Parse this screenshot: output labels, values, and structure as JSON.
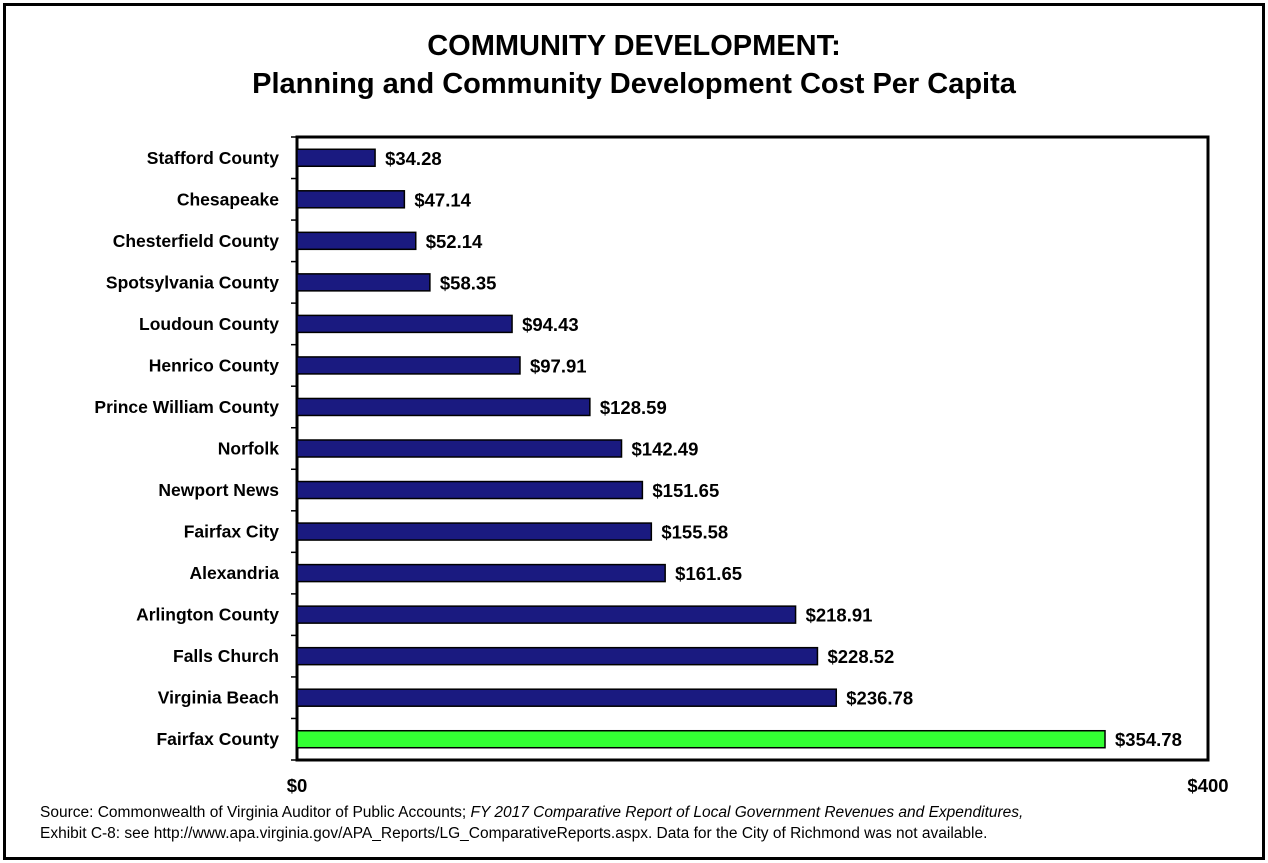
{
  "chart_data": {
    "type": "bar",
    "orientation": "horizontal",
    "title": "COMMUNITY DEVELOPMENT:",
    "subtitle": "Planning and Community Development Cost Per Capita",
    "categories": [
      "Stafford County",
      "Chesapeake",
      "Chesterfield County",
      "Spotsylvania County",
      "Loudoun County",
      "Henrico County",
      "Prince William County",
      "Norfolk",
      "Newport News",
      "Fairfax City",
      "Alexandria",
      "Arlington County",
      "Falls Church",
      "Virginia Beach",
      "Fairfax County"
    ],
    "values": [
      34.28,
      47.14,
      52.14,
      58.35,
      94.43,
      97.91,
      128.59,
      142.49,
      151.65,
      155.58,
      161.65,
      218.91,
      228.52,
      236.78,
      354.78
    ],
    "data_labels": [
      "$34.28",
      "$47.14",
      "$52.14",
      "$58.35",
      "$94.43",
      "$97.91",
      "$128.59",
      "$142.49",
      "$151.65",
      "$155.58",
      "$161.65",
      "$218.91",
      "$228.52",
      "$236.78",
      "$354.78"
    ],
    "xlim": [
      0,
      400
    ],
    "x_tick_labels": [
      "$0",
      "$400"
    ],
    "xlabel": "",
    "ylabel": "",
    "grid": false,
    "colors": {
      "default_bar": "#1a1a80",
      "highlight_bar": "#33ff33",
      "bar_stroke": "#000000"
    },
    "highlight_category": "Fairfax County"
  },
  "source": {
    "prefix": "Source: Commonwealth of Virginia Auditor of Public Accounts; ",
    "report_italic": "FY 2017 Comparative Report of Local Government Revenues and Expenditures,",
    "line2": "Exhibit C-8: see http://www.apa.virginia.gov/APA_Reports/LG_ComparativeReports.aspx.  Data for the City of Richmond was not available."
  }
}
